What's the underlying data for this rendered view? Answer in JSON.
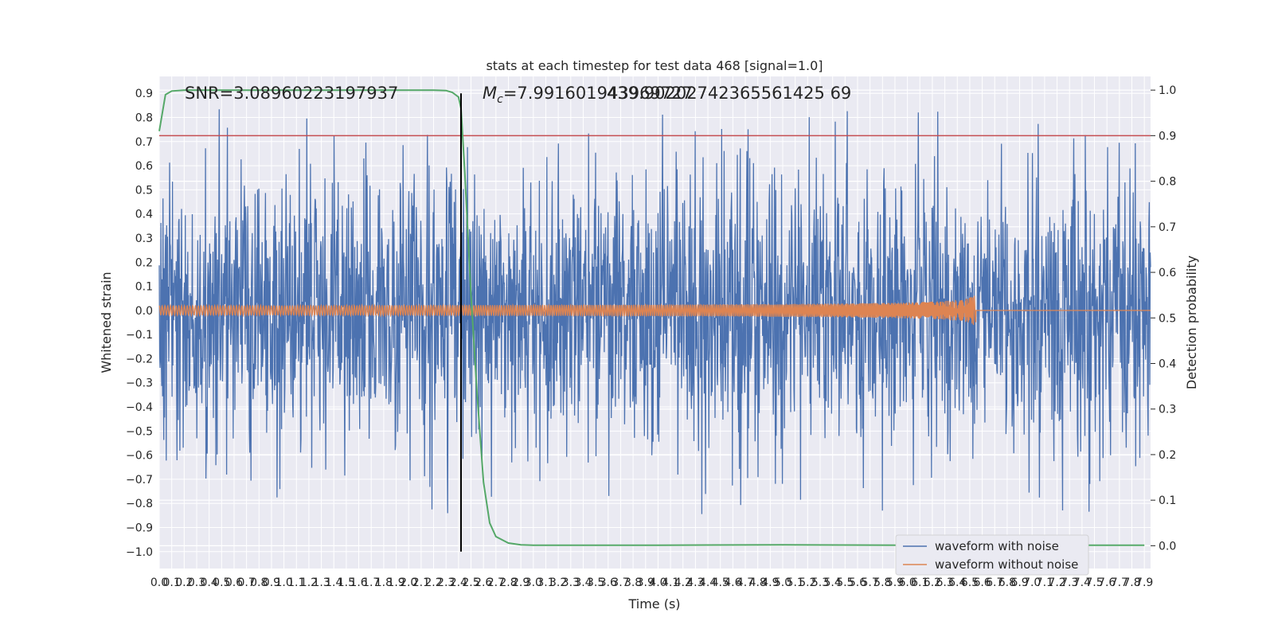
{
  "chart_data": {
    "type": "line",
    "title": "stats at each timestep for test data 468 [signal=1.0]",
    "xlabel": "Time (s)",
    "ylabel_left": "Whitened strain",
    "ylabel_right": "Detection probability",
    "annotations": {
      "snr": "SNR=3.08960223197937",
      "mc_prefix": "M",
      "mc_subscript": "c",
      "mc_value": "=7.991601943969727",
      "overlap_value": "439.90202742365561425 69"
    },
    "xlim": [
      0,
      7.95
    ],
    "ylim_left": [
      -1.07,
      0.97
    ],
    "ylim_right": [
      -0.05,
      1.03
    ],
    "x_ticks": [
      0.0,
      0.1,
      0.2,
      0.3,
      0.4,
      0.5,
      0.6,
      0.7,
      0.8,
      0.9,
      1.0,
      1.1,
      1.2,
      1.3,
      1.4,
      1.5,
      1.6,
      1.7,
      1.8,
      1.9,
      2.0,
      2.1,
      2.2,
      2.3,
      2.4,
      2.5,
      2.6,
      2.7,
      2.8,
      2.9,
      3.0,
      3.1,
      3.2,
      3.3,
      3.4,
      3.5,
      3.6,
      3.7,
      3.8,
      3.9,
      4.0,
      4.1,
      4.2,
      4.3,
      4.4,
      4.5,
      4.6,
      4.7,
      4.8,
      4.9,
      5.0,
      5.1,
      5.2,
      5.3,
      5.4,
      5.5,
      5.6,
      5.7,
      5.8,
      5.9,
      6.0,
      6.1,
      6.2,
      6.3,
      6.4,
      6.5,
      6.6,
      6.7,
      6.8,
      6.9,
      7.0,
      7.1,
      7.2,
      7.3,
      7.4,
      7.5,
      7.6,
      7.7,
      7.8,
      7.9
    ],
    "y_ticks_left": [
      0.9,
      0.8,
      0.7,
      0.6,
      0.5,
      0.4,
      0.3,
      0.2,
      0.1,
      0.0,
      -0.1,
      -0.2,
      -0.3,
      -0.4,
      -0.5,
      -0.6,
      -0.7,
      -0.8,
      -0.9,
      -1.0
    ],
    "y_ticks_right": [
      1.0,
      0.9,
      0.8,
      0.7,
      0.6,
      0.5,
      0.4,
      0.3,
      0.2,
      0.1,
      0.0
    ],
    "threshold_right": 0.9,
    "marker_x": 2.42,
    "series": [
      {
        "name": "waveform with noise",
        "color": "#4c72b0",
        "axis": "left",
        "description": "dense whitened noise trace, amplitude ~±0.5 with peaks to ±0.9",
        "noise_amplitude": 0.5,
        "peak_max": 0.9,
        "peak_min": -0.97
      },
      {
        "name": "waveform without noise",
        "color": "#dd8452",
        "axis": "left",
        "description": "chirp signal growing to merger then flat",
        "merger_time": 6.55,
        "peak_amplitude": 0.075
      },
      {
        "name": "",
        "color": "#55a868",
        "axis": "right",
        "x": [
          0.0,
          0.05,
          0.1,
          0.2,
          0.5,
          1.0,
          1.5,
          2.0,
          2.2,
          2.3,
          2.35,
          2.4,
          2.42,
          2.45,
          2.5,
          2.55,
          2.6,
          2.65,
          2.7,
          2.8,
          2.9,
          3.0,
          3.5,
          4.0,
          5.0,
          6.0,
          7.0,
          7.9
        ],
        "y": [
          0.91,
          0.99,
          0.998,
          1.0,
          1.0,
          1.0,
          1.0,
          1.0,
          1.0,
          0.999,
          0.995,
          0.985,
          0.96,
          0.82,
          0.55,
          0.33,
          0.14,
          0.05,
          0.02,
          0.006,
          0.002,
          0.001,
          0.001,
          0.001,
          0.002,
          0.001,
          0.001,
          0.001
        ]
      },
      {
        "name": "",
        "color": "#c44e52",
        "axis": "right",
        "type": "hline",
        "value": 0.9
      }
    ],
    "legend": {
      "position": "lower-right",
      "entries": [
        "waveform with noise",
        "waveform without noise"
      ]
    },
    "grid": true
  }
}
